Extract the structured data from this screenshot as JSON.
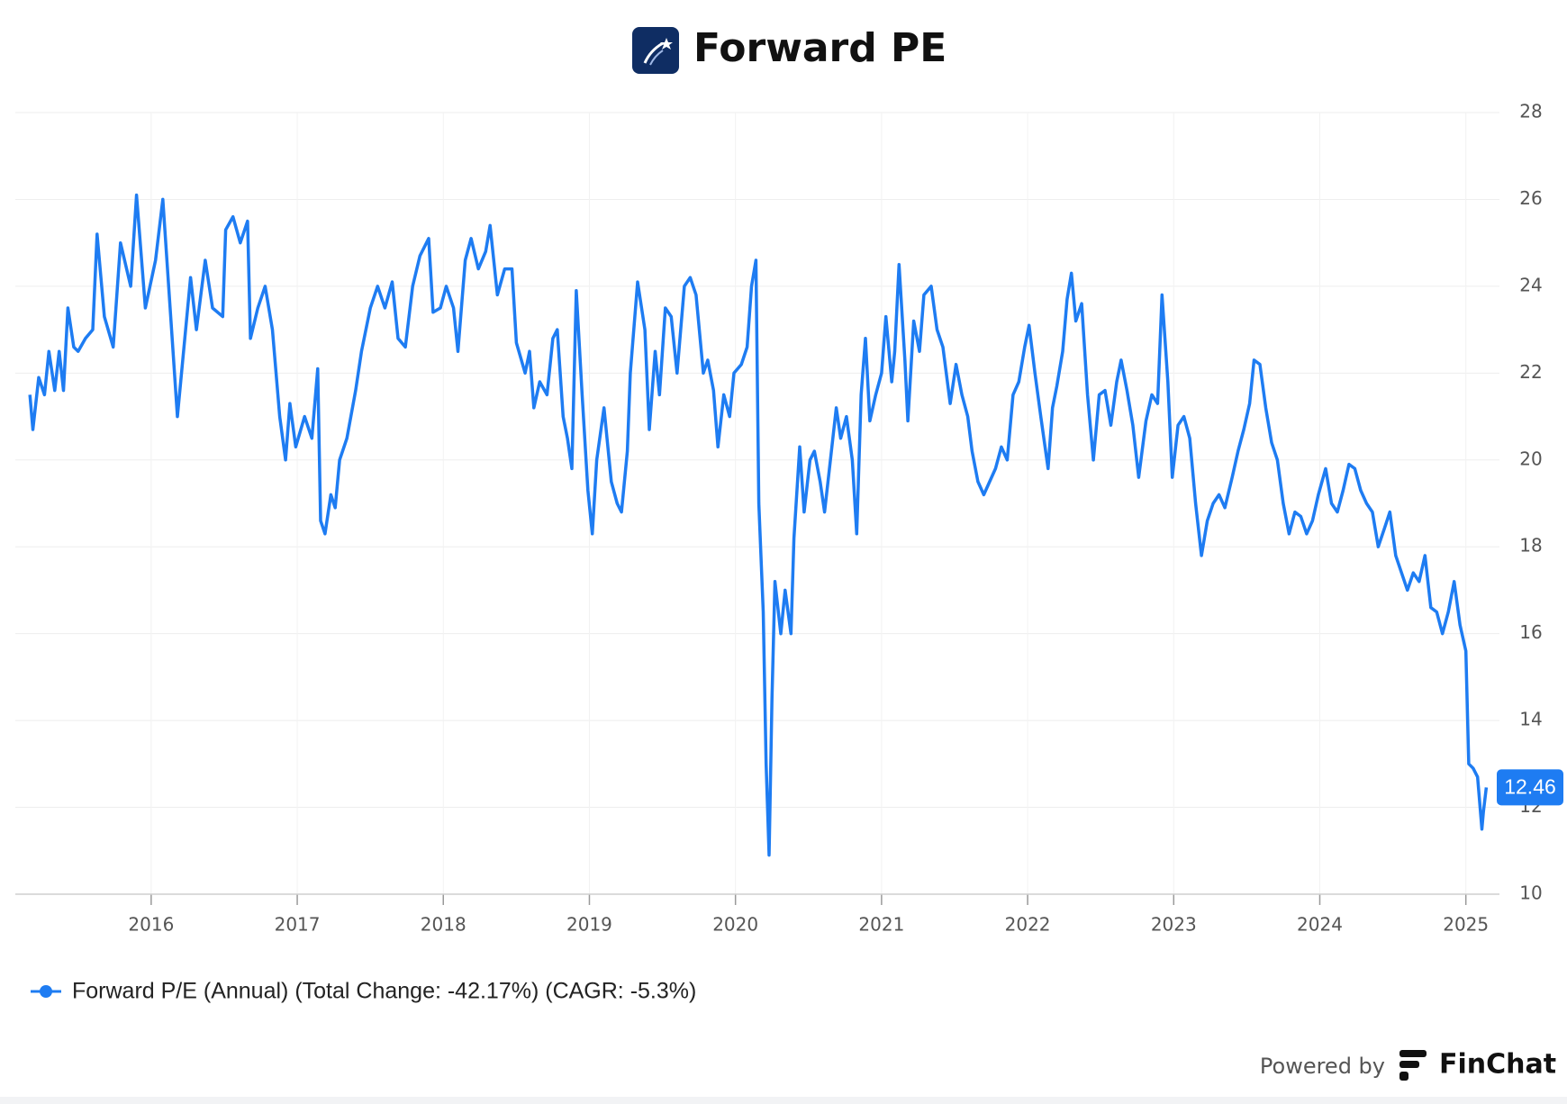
{
  "chart_data": {
    "type": "line",
    "title": "Forward PE",
    "footer": {
      "prefix": "Powered by",
      "brand": "FinChat"
    },
    "xlim": [
      2015.07,
      2025.23
    ],
    "xticks": [
      2016,
      2017,
      2018,
      2019,
      2020,
      2021,
      2022,
      2023,
      2024,
      2025
    ],
    "ylim": [
      10,
      28
    ],
    "yticks": [
      10,
      12,
      14,
      16,
      18,
      20,
      22,
      24,
      26,
      28
    ],
    "grid": true,
    "x": [
      2015.17,
      2015.19,
      2015.23,
      2015.27,
      2015.3,
      2015.34,
      2015.37,
      2015.4,
      2015.43,
      2015.47,
      2015.5,
      2015.55,
      2015.6,
      2015.63,
      2015.68,
      2015.74,
      2015.79,
      2015.86,
      2015.9,
      2015.96,
      2016.03,
      2016.08,
      2016.13,
      2016.18,
      2016.23,
      2016.27,
      2016.31,
      2016.37,
      2016.42,
      2016.49,
      2016.51,
      2016.56,
      2016.61,
      2016.66,
      2016.68,
      2016.73,
      2016.78,
      2016.83,
      2016.88,
      2016.92,
      2016.95,
      2016.99,
      2017.05,
      2017.1,
      2017.14,
      2017.16,
      2017.19,
      2017.23,
      2017.26,
      2017.29,
      2017.34,
      2017.4,
      2017.44,
      2017.5,
      2017.55,
      2017.6,
      2017.65,
      2017.69,
      2017.74,
      2017.79,
      2017.84,
      2017.9,
      2017.93,
      2017.98,
      2018.02,
      2018.07,
      2018.1,
      2018.15,
      2018.19,
      2018.24,
      2018.29,
      2018.32,
      2018.37,
      2018.42,
      2018.47,
      2018.5,
      2018.56,
      2018.59,
      2018.62,
      2018.66,
      2018.71,
      2018.75,
      2018.78,
      2018.82,
      2018.85,
      2018.88,
      2018.91,
      2018.95,
      2018.99,
      2019.02,
      2019.05,
      2019.1,
      2019.15,
      2019.19,
      2019.22,
      2019.26,
      2019.28,
      2019.33,
      2019.38,
      2019.41,
      2019.45,
      2019.48,
      2019.52,
      2019.56,
      2019.6,
      2019.65,
      2019.69,
      2019.73,
      2019.78,
      2019.81,
      2019.85,
      2019.88,
      2019.92,
      2019.96,
      2019.99,
      2020.04,
      2020.08,
      2020.11,
      2020.14,
      2020.16,
      2020.19,
      2020.21,
      2020.23,
      2020.25,
      2020.27,
      2020.31,
      2020.34,
      2020.38,
      2020.4,
      2020.44,
      2020.47,
      2020.51,
      2020.54,
      2020.58,
      2020.61,
      2020.65,
      2020.69,
      2020.72,
      2020.76,
      2020.8,
      2020.83,
      2020.86,
      2020.89,
      2020.92,
      2020.96,
      2021.0,
      2021.03,
      2021.07,
      2021.09,
      2021.12,
      2021.16,
      2021.18,
      2021.22,
      2021.26,
      2021.29,
      2021.34,
      2021.38,
      2021.42,
      2021.47,
      2021.51,
      2021.55,
      2021.59,
      2021.62,
      2021.66,
      2021.7,
      2021.74,
      2021.78,
      2021.82,
      2021.86,
      2021.9,
      2021.94,
      2021.98,
      2022.01,
      2022.05,
      2022.09,
      2022.14,
      2022.17,
      2022.2,
      2022.24,
      2022.27,
      2022.3,
      2022.33,
      2022.37,
      2022.41,
      2022.45,
      2022.49,
      2022.53,
      2022.57,
      2022.61,
      2022.64,
      2022.68,
      2022.72,
      2022.76,
      2022.81,
      2022.85,
      2022.89,
      2022.92,
      2022.96,
      2022.99,
      2023.03,
      2023.07,
      2023.11,
      2023.15,
      2023.19,
      2023.23,
      2023.27,
      2023.31,
      2023.35,
      2023.4,
      2023.44,
      2023.48,
      2023.52,
      2023.55,
      2023.59,
      2023.63,
      2023.67,
      2023.71,
      2023.75,
      2023.79,
      2023.83,
      2023.87,
      2023.91,
      2023.95,
      2023.99,
      2024.04,
      2024.08,
      2024.12,
      2024.16,
      2024.2,
      2024.24,
      2024.28,
      2024.32,
      2024.36,
      2024.4,
      2024.44,
      2024.48,
      2024.52,
      2024.56,
      2024.6,
      2024.64,
      2024.68,
      2024.72,
      2024.76,
      2024.8,
      2024.84,
      2024.88,
      2024.92,
      2024.96,
      2025.0,
      2025.02,
      2025.05,
      2025.08,
      2025.11,
      2025.12,
      2025.14
    ],
    "series": [
      {
        "name": "Forward P/E (Annual) (Total Change: -42.17%) (CAGR: -5.3%)",
        "color": "#1e7cf2",
        "values": [
          21.5,
          20.7,
          21.9,
          21.5,
          22.5,
          21.6,
          22.5,
          21.6,
          23.5,
          22.6,
          22.5,
          22.8,
          23.0,
          25.2,
          23.3,
          22.6,
          25.0,
          24.0,
          26.1,
          23.5,
          24.6,
          26.0,
          23.5,
          21.0,
          22.8,
          24.2,
          23.0,
          24.6,
          23.5,
          23.3,
          25.3,
          25.6,
          25.0,
          25.5,
          22.8,
          23.5,
          24.0,
          23.0,
          21.0,
          20.0,
          21.3,
          20.3,
          21.0,
          20.5,
          22.1,
          18.6,
          18.3,
          19.2,
          18.9,
          20.0,
          20.5,
          21.6,
          22.5,
          23.5,
          24.0,
          23.5,
          24.1,
          22.8,
          22.6,
          24.0,
          24.7,
          25.1,
          23.4,
          23.5,
          24.0,
          23.5,
          22.5,
          24.6,
          25.1,
          24.4,
          24.8,
          25.4,
          23.8,
          24.4,
          24.4,
          22.7,
          22.0,
          22.5,
          21.2,
          21.8,
          21.5,
          22.8,
          23.0,
          21.0,
          20.5,
          19.8,
          23.9,
          21.5,
          19.3,
          18.3,
          20.0,
          21.2,
          19.5,
          19.0,
          18.8,
          20.2,
          22.0,
          24.1,
          23.0,
          20.7,
          22.5,
          21.5,
          23.5,
          23.3,
          22.0,
          24.0,
          24.2,
          23.8,
          22.0,
          22.3,
          21.6,
          20.3,
          21.5,
          21.0,
          22.0,
          22.2,
          22.6,
          24.0,
          24.6,
          19.0,
          16.5,
          13.0,
          10.9,
          14.5,
          17.2,
          16.0,
          17.0,
          16.0,
          18.2,
          20.3,
          18.8,
          20.0,
          20.2,
          19.5,
          18.8,
          20.0,
          21.2,
          20.5,
          21.0,
          20.0,
          18.3,
          21.5,
          22.8,
          20.9,
          21.5,
          22.0,
          23.3,
          21.8,
          22.5,
          24.5,
          22.3,
          20.9,
          23.2,
          22.5,
          23.8,
          24.0,
          23.0,
          22.6,
          21.3,
          22.2,
          21.5,
          21.0,
          20.2,
          19.5,
          19.2,
          19.5,
          19.8,
          20.3,
          20.0,
          21.5,
          21.8,
          22.6,
          23.1,
          22.0,
          21.0,
          19.8,
          21.2,
          21.7,
          22.5,
          23.7,
          24.3,
          23.2,
          23.6,
          21.5,
          20.0,
          21.5,
          21.6,
          20.8,
          21.8,
          22.3,
          21.6,
          20.8,
          19.6,
          20.9,
          21.5,
          21.3,
          23.8,
          21.8,
          19.6,
          20.8,
          21.0,
          20.5,
          19.0,
          17.8,
          18.6,
          19.0,
          19.2,
          18.9,
          19.6,
          20.2,
          20.7,
          21.3,
          22.3,
          22.2,
          21.2,
          20.4,
          20.0,
          19.0,
          18.3,
          18.8,
          18.7,
          18.3,
          18.6,
          19.2,
          19.8,
          19.0,
          18.8,
          19.3,
          19.9,
          19.8,
          19.3,
          19.0,
          18.8,
          18.0,
          18.4,
          18.8,
          17.8,
          17.4,
          17.0,
          17.4,
          17.2,
          17.8,
          16.6,
          16.5,
          16.0,
          16.5,
          17.2,
          16.2,
          15.6,
          13.0,
          12.9,
          12.7,
          11.5,
          11.9,
          12.46
        ]
      }
    ]
  }
}
